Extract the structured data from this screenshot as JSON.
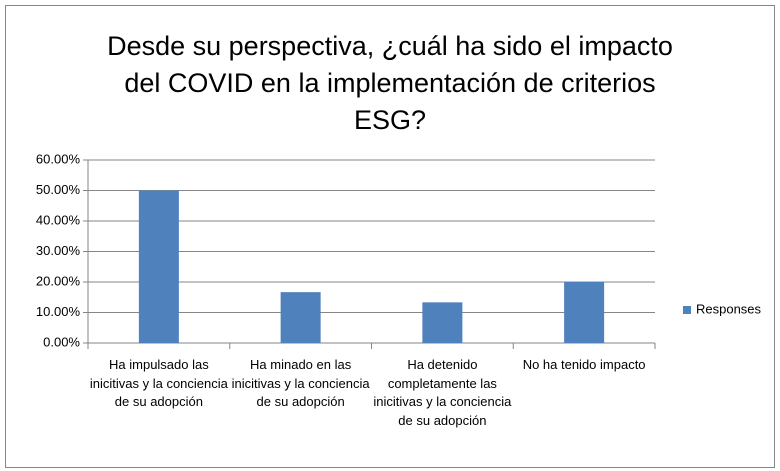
{
  "chart_data": {
    "type": "bar",
    "title": "Desde su perspectiva, ¿cuál ha sido el impacto del COVID en la implementación de criterios ESG?",
    "categories": [
      "Ha impulsado las inicitivas y la conciencia de su adopción",
      "Ha minado en las inicitivas y la conciencia de su adopción",
      "Ha detenido completamente las inicitivas y la conciencia de su adopción",
      "No ha tenido impacto"
    ],
    "series": [
      {
        "name": "Responses",
        "color": "#4f81bd",
        "values": [
          50,
          16.67,
          13.33,
          20
        ]
      }
    ],
    "ylim": [
      0,
      60
    ],
    "yticks": [
      {
        "value": 0,
        "label": "0.00%"
      },
      {
        "value": 10,
        "label": "10.00%"
      },
      {
        "value": 20,
        "label": "20.00%"
      },
      {
        "value": 30,
        "label": "30.00%"
      },
      {
        "value": 40,
        "label": "40.00%"
      },
      {
        "value": 50,
        "label": "50.00%"
      },
      {
        "value": 60,
        "label": "60.00%"
      }
    ],
    "grid": true,
    "legend": "right"
  }
}
